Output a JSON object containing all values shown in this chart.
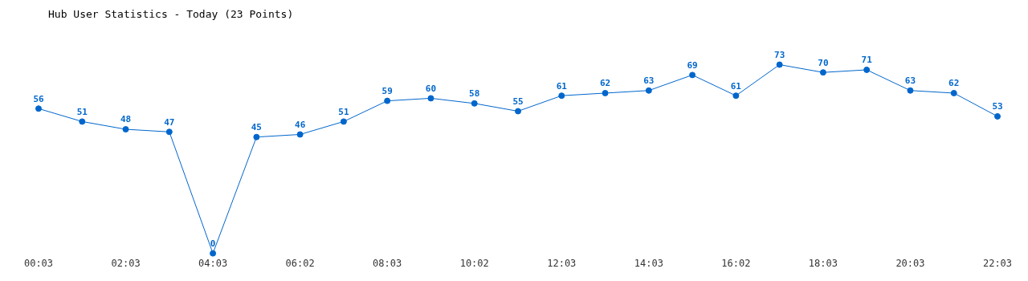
{
  "chart_data": {
    "type": "line",
    "title": "Hub User Statistics - Today (23 Points)",
    "categories": [
      "00:03",
      null,
      "02:03",
      null,
      "04:03",
      null,
      "06:02",
      null,
      "08:03",
      null,
      "10:02",
      null,
      "12:03",
      null,
      "14:03",
      null,
      "16:02",
      null,
      "18:03",
      null,
      "20:03",
      null,
      "22:03"
    ],
    "series": [
      {
        "color": "#0066cc",
        "values": [
          56,
          51,
          48,
          47,
          0,
          45,
          46,
          51,
          59,
          60,
          58,
          55,
          61,
          62,
          63,
          69,
          61,
          73,
          70,
          71,
          63,
          62,
          53
        ]
      }
    ],
    "data_labels": true,
    "marker": "circle",
    "grid": false,
    "legend": false,
    "tick_labels": "x"
  }
}
